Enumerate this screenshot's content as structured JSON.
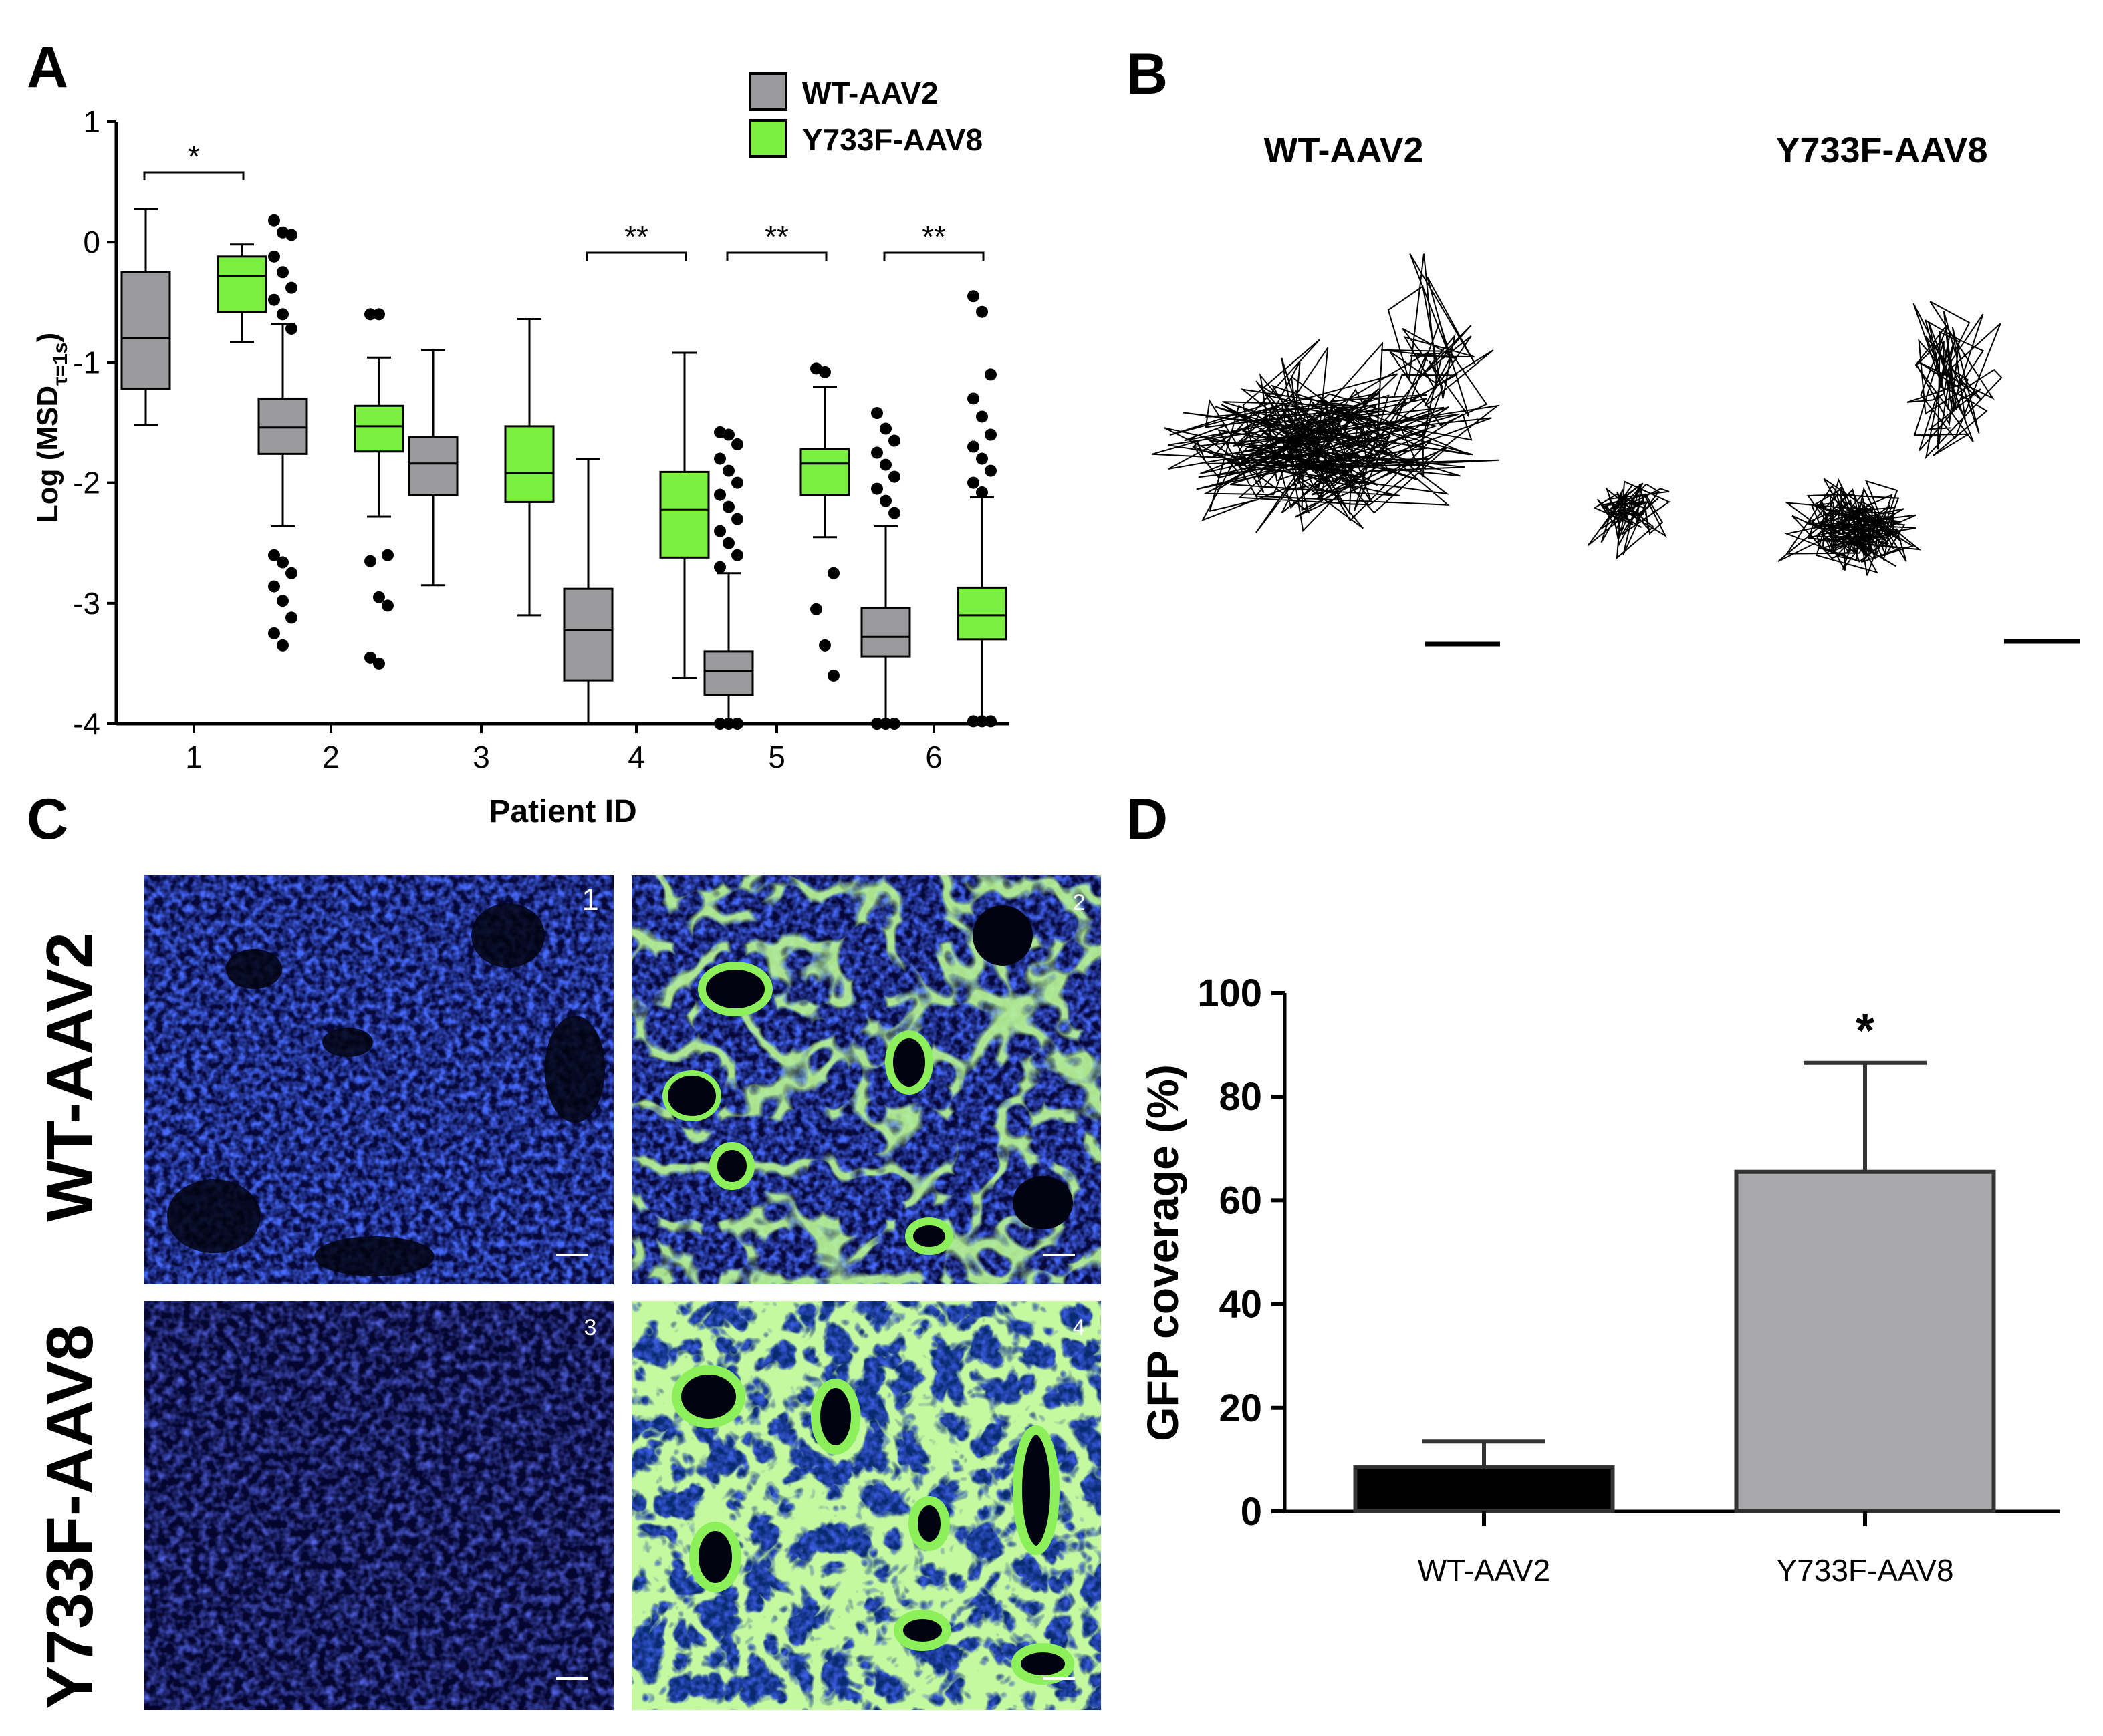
{
  "panels": {
    "a": "A",
    "b": "B",
    "c": "C",
    "d": "D"
  },
  "colors": {
    "wt": "#9b9b9e",
    "y733f": "#7cf040",
    "bar_wt": "#000000",
    "bar_y": "#a9a9ab",
    "tissue_blue": "#1a2fd8",
    "tissue_green": "#8cf05a"
  },
  "chart_data": [
    {
      "panel": "A",
      "type": "box",
      "ylabel_main": "Log (MSD",
      "ylabel_sub": "τ=1s",
      "ylabel_close": ")",
      "xlabel": "Patient ID",
      "ylim": [
        -4,
        1
      ],
      "yticks": [
        "1",
        "0",
        "-1",
        "-2",
        "-3",
        "-4"
      ],
      "yticks_values": [
        1,
        0,
        -1,
        -2,
        -3,
        -4
      ],
      "legend": [
        {
          "name": "WT-AAV2",
          "color_key": "wt"
        },
        {
          "name": "Y733F-AAV8",
          "color_key": "y733f"
        }
      ],
      "categories": [
        "1",
        "2",
        "3",
        "4",
        "5",
        "6"
      ],
      "significance": [
        {
          "category": 0,
          "label": "*"
        },
        {
          "category": 3,
          "label": "**"
        },
        {
          "category": 4,
          "label": "**"
        },
        {
          "category": 5,
          "label": "**"
        }
      ],
      "series": [
        {
          "name": "WT-AAV2",
          "boxes": [
            {
              "min": -1.52,
              "q1": -1.22,
              "median": -0.8,
              "q3": -0.25,
              "max": 0.27,
              "outliers": []
            },
            {
              "min": -2.36,
              "q1": -1.76,
              "median": -1.54,
              "q3": -1.3,
              "max": -0.68,
              "outliers": [
                0.18,
                0.08,
                0.06,
                -0.12,
                -0.25,
                -0.38,
                -0.48,
                -0.6,
                -0.72,
                -2.6,
                -2.66,
                -2.75,
                -2.86,
                -2.98,
                -3.12,
                -3.25,
                -3.35
              ]
            },
            {
              "min": -2.85,
              "q1": -2.1,
              "median": -1.84,
              "q3": -1.62,
              "max": -0.9,
              "outliers": []
            },
            {
              "min": -4.0,
              "q1": -3.64,
              "median": -3.22,
              "q3": -2.88,
              "max": -1.8,
              "outliers": []
            },
            {
              "min": -3.98,
              "q1": -3.76,
              "median": -3.56,
              "q3": -3.4,
              "max": -2.75,
              "outliers": [
                -1.58,
                -1.6,
                -1.68,
                -1.8,
                -1.9,
                -2.0,
                -2.1,
                -2.2,
                -2.3,
                -2.4,
                -2.5,
                -2.6,
                -2.7,
                -4.0,
                -4.0,
                -4.0
              ]
            },
            {
              "min": -3.98,
              "q1": -3.44,
              "median": -3.28,
              "q3": -3.04,
              "max": -2.36,
              "outliers": [
                -1.42,
                -1.55,
                -1.65,
                -1.75,
                -1.85,
                -1.95,
                -2.05,
                -2.15,
                -2.25,
                -4.0,
                -4.0,
                -4.0,
                -4.0
              ]
            }
          ]
        },
        {
          "name": "Y733F-AAV8",
          "boxes": [
            {
              "min": -0.83,
              "q1": -0.58,
              "median": -0.28,
              "q3": -0.12,
              "max": -0.02,
              "outliers": []
            },
            {
              "min": -2.28,
              "q1": -1.74,
              "median": -1.53,
              "q3": -1.36,
              "max": -0.96,
              "outliers": [
                -0.6,
                -0.6,
                -2.6,
                -2.65,
                -2.95,
                -3.02,
                -3.45,
                -3.5
              ]
            },
            {
              "min": -3.1,
              "q1": -2.16,
              "median": -1.92,
              "q3": -1.53,
              "max": -0.64,
              "outliers": []
            },
            {
              "min": -3.62,
              "q1": -2.62,
              "median": -2.22,
              "q3": -1.91,
              "max": -0.92,
              "outliers": []
            },
            {
              "min": -2.45,
              "q1": -2.1,
              "median": -1.84,
              "q3": -1.72,
              "max": -1.2,
              "outliers": [
                -1.05,
                -1.08,
                -2.75,
                -3.05,
                -3.35,
                -3.6
              ]
            },
            {
              "min": -3.98,
              "q1": -3.3,
              "median": -3.1,
              "q3": -2.87,
              "max": -2.12,
              "outliers": [
                -0.45,
                -0.58,
                -1.1,
                -1.3,
                -1.45,
                -1.6,
                -1.7,
                -1.8,
                -1.9,
                -2.0,
                -2.08,
                -3.98,
                -3.98,
                -3.98
              ]
            }
          ]
        }
      ]
    },
    {
      "panel": "D",
      "type": "bar",
      "ylabel": "GFP coverage (%)",
      "ylim": [
        0,
        100
      ],
      "yticks": [
        "100",
        "80",
        "60",
        "40",
        "20",
        "0"
      ],
      "yticks_values": [
        100,
        80,
        60,
        40,
        20,
        0
      ],
      "categories": [
        "WT-AAV2",
        "Y733F-AAV8"
      ],
      "values": [
        8.5,
        65.5
      ],
      "errors": [
        5,
        21
      ],
      "significance": [
        {
          "category": 1,
          "label": "*"
        }
      ]
    }
  ],
  "panel_b": {
    "titles": [
      "WT-AAV2",
      "Y733F-AAV8"
    ]
  },
  "panel_c": {
    "row_labels": [
      "WT-AAV2",
      "Y733F-AAV8"
    ],
    "image_numbers": [
      "1",
      "2",
      "3",
      "4"
    ]
  }
}
